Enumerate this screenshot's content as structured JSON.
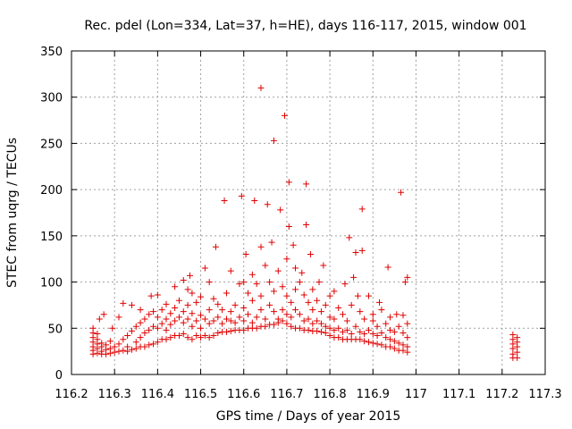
{
  "chart_data": {
    "type": "scatter",
    "title": "Rec. pdel (Lon=334, Lat=37, h=HE), days 116-117, 2015, window 001",
    "xlabel": "GPS time / Days of year 2015",
    "ylabel": "STEC from uqrg / TECUs",
    "xlim": [
      116.2,
      117.3
    ],
    "ylim": [
      0,
      350
    ],
    "xticks": [
      "116.2",
      "116.3",
      "116.4",
      "116.5",
      "116.6",
      "116.7",
      "116.8",
      "116.9",
      "117",
      "117.1",
      "117.2",
      "117.3"
    ],
    "xtick_values": [
      116.2,
      116.3,
      116.4,
      116.5,
      116.6,
      116.7,
      116.8,
      116.9,
      117.0,
      117.1,
      117.2,
      117.3
    ],
    "yticks": [
      "0",
      "50",
      "100",
      "150",
      "200",
      "250",
      "300",
      "350"
    ],
    "ytick_values": [
      0,
      50,
      100,
      150,
      200,
      250,
      300,
      350
    ],
    "grid": true,
    "marker": "+",
    "color": "#e00000",
    "series": [
      {
        "points": [
          [
            116.25,
            22
          ],
          [
            116.25,
            26
          ],
          [
            116.25,
            30
          ],
          [
            116.25,
            35
          ],
          [
            116.25,
            40
          ],
          [
            116.25,
            45
          ],
          [
            116.25,
            50
          ],
          [
            116.26,
            23
          ],
          [
            116.26,
            28
          ],
          [
            116.26,
            33
          ],
          [
            116.26,
            38
          ],
          [
            116.26,
            44
          ],
          [
            116.265,
            60
          ],
          [
            116.27,
            22
          ],
          [
            116.27,
            25
          ],
          [
            116.27,
            30
          ],
          [
            116.27,
            34
          ],
          [
            116.275,
            65
          ],
          [
            116.28,
            22
          ],
          [
            116.28,
            27
          ],
          [
            116.28,
            32
          ],
          [
            116.29,
            23
          ],
          [
            116.29,
            28
          ],
          [
            116.29,
            36
          ],
          [
            116.295,
            50
          ],
          [
            116.3,
            24
          ],
          [
            116.3,
            30
          ],
          [
            116.31,
            25
          ],
          [
            116.31,
            33
          ],
          [
            116.31,
            62
          ],
          [
            116.32,
            26
          ],
          [
            116.32,
            38
          ],
          [
            116.32,
            77
          ],
          [
            116.33,
            25
          ],
          [
            116.33,
            30
          ],
          [
            116.33,
            42
          ],
          [
            116.34,
            27
          ],
          [
            116.34,
            47
          ],
          [
            116.34,
            75
          ],
          [
            116.35,
            28
          ],
          [
            116.35,
            35
          ],
          [
            116.35,
            52
          ],
          [
            116.36,
            30
          ],
          [
            116.36,
            40
          ],
          [
            116.36,
            56
          ],
          [
            116.36,
            70
          ],
          [
            116.37,
            30
          ],
          [
            116.37,
            45
          ],
          [
            116.37,
            60
          ],
          [
            116.38,
            32
          ],
          [
            116.38,
            48
          ],
          [
            116.38,
            65
          ],
          [
            116.385,
            85
          ],
          [
            116.39,
            33
          ],
          [
            116.39,
            52
          ],
          [
            116.39,
            68
          ],
          [
            116.4,
            35
          ],
          [
            116.4,
            50
          ],
          [
            116.4,
            62
          ],
          [
            116.4,
            86
          ],
          [
            116.41,
            38
          ],
          [
            116.41,
            55
          ],
          [
            116.41,
            70
          ],
          [
            116.42,
            38
          ],
          [
            116.42,
            48
          ],
          [
            116.42,
            60
          ],
          [
            116.42,
            76
          ],
          [
            116.43,
            40
          ],
          [
            116.43,
            54
          ],
          [
            116.43,
            66
          ],
          [
            116.44,
            42
          ],
          [
            116.44,
            58
          ],
          [
            116.44,
            72
          ],
          [
            116.44,
            95
          ],
          [
            116.45,
            42
          ],
          [
            116.45,
            62
          ],
          [
            116.45,
            80
          ],
          [
            116.46,
            44
          ],
          [
            116.46,
            56
          ],
          [
            116.46,
            68
          ],
          [
            116.46,
            102
          ],
          [
            116.47,
            40
          ],
          [
            116.47,
            60
          ],
          [
            116.47,
            75
          ],
          [
            116.47,
            92
          ],
          [
            116.475,
            107
          ],
          [
            116.48,
            38
          ],
          [
            116.48,
            52
          ],
          [
            116.48,
            66
          ],
          [
            116.48,
            88
          ],
          [
            116.49,
            42
          ],
          [
            116.49,
            58
          ],
          [
            116.49,
            78
          ],
          [
            116.5,
            40
          ],
          [
            116.5,
            50
          ],
          [
            116.5,
            64
          ],
          [
            116.5,
            84
          ],
          [
            116.51,
            42
          ],
          [
            116.51,
            60
          ],
          [
            116.51,
            115
          ],
          [
            116.52,
            40
          ],
          [
            116.52,
            55
          ],
          [
            116.52,
            70
          ],
          [
            116.52,
            100
          ],
          [
            116.53,
            42
          ],
          [
            116.53,
            58
          ],
          [
            116.53,
            82
          ],
          [
            116.535,
            138
          ],
          [
            116.54,
            45
          ],
          [
            116.54,
            62
          ],
          [
            116.54,
            76
          ],
          [
            116.55,
            46
          ],
          [
            116.55,
            55
          ],
          [
            116.55,
            70
          ],
          [
            116.555,
            188
          ],
          [
            116.56,
            46
          ],
          [
            116.56,
            60
          ],
          [
            116.56,
            88
          ],
          [
            116.57,
            47
          ],
          [
            116.57,
            58
          ],
          [
            116.57,
            68
          ],
          [
            116.57,
            112
          ],
          [
            116.58,
            48
          ],
          [
            116.58,
            56
          ],
          [
            116.58,
            75
          ],
          [
            116.59,
            48
          ],
          [
            116.59,
            62
          ],
          [
            116.59,
            98
          ],
          [
            116.595,
            193
          ],
          [
            116.6,
            48
          ],
          [
            116.6,
            58
          ],
          [
            116.6,
            72
          ],
          [
            116.6,
            100
          ],
          [
            116.605,
            130
          ],
          [
            116.61,
            50
          ],
          [
            116.61,
            65
          ],
          [
            116.61,
            88
          ],
          [
            116.62,
            50
          ],
          [
            116.62,
            56
          ],
          [
            116.62,
            80
          ],
          [
            116.62,
            108
          ],
          [
            116.625,
            188
          ],
          [
            116.63,
            50
          ],
          [
            116.63,
            62
          ],
          [
            116.63,
            98
          ],
          [
            116.64,
            52
          ],
          [
            116.64,
            70
          ],
          [
            116.64,
            85
          ],
          [
            116.64,
            138
          ],
          [
            116.64,
            310
          ],
          [
            116.65,
            52
          ],
          [
            116.65,
            60
          ],
          [
            116.65,
            118
          ],
          [
            116.655,
            184
          ],
          [
            116.66,
            54
          ],
          [
            116.66,
            75
          ],
          [
            116.66,
            100
          ],
          [
            116.665,
            143
          ],
          [
            116.67,
            54
          ],
          [
            116.67,
            68
          ],
          [
            116.67,
            90
          ],
          [
            116.67,
            253
          ],
          [
            116.68,
            56
          ],
          [
            116.68,
            60
          ],
          [
            116.68,
            112
          ],
          [
            116.685,
            178
          ],
          [
            116.69,
            58
          ],
          [
            116.69,
            70
          ],
          [
            116.69,
            95
          ],
          [
            116.695,
            280
          ],
          [
            116.7,
            55
          ],
          [
            116.7,
            65
          ],
          [
            116.7,
            85
          ],
          [
            116.7,
            125
          ],
          [
            116.705,
            160
          ],
          [
            116.705,
            208
          ],
          [
            116.71,
            52
          ],
          [
            116.71,
            62
          ],
          [
            116.71,
            78
          ],
          [
            116.715,
            140
          ],
          [
            116.72,
            50
          ],
          [
            116.72,
            70
          ],
          [
            116.72,
            92
          ],
          [
            116.72,
            115
          ],
          [
            116.73,
            50
          ],
          [
            116.73,
            65
          ],
          [
            116.73,
            100
          ],
          [
            116.735,
            110
          ],
          [
            116.74,
            48
          ],
          [
            116.74,
            58
          ],
          [
            116.74,
            86
          ],
          [
            116.745,
            162
          ],
          [
            116.745,
            206
          ],
          [
            116.75,
            48
          ],
          [
            116.75,
            60
          ],
          [
            116.75,
            78
          ],
          [
            116.755,
            130
          ],
          [
            116.76,
            47
          ],
          [
            116.76,
            55
          ],
          [
            116.76,
            70
          ],
          [
            116.76,
            92
          ],
          [
            116.77,
            47
          ],
          [
            116.77,
            58
          ],
          [
            116.77,
            80
          ],
          [
            116.775,
            100
          ],
          [
            116.78,
            46
          ],
          [
            116.78,
            55
          ],
          [
            116.78,
            68
          ],
          [
            116.785,
            118
          ],
          [
            116.79,
            45
          ],
          [
            116.79,
            52
          ],
          [
            116.79,
            75
          ],
          [
            116.8,
            42
          ],
          [
            116.8,
            50
          ],
          [
            116.8,
            62
          ],
          [
            116.8,
            85
          ],
          [
            116.81,
            40
          ],
          [
            116.81,
            48
          ],
          [
            116.81,
            60
          ],
          [
            116.81,
            90
          ],
          [
            116.82,
            40
          ],
          [
            116.82,
            50
          ],
          [
            116.82,
            72
          ],
          [
            116.83,
            38
          ],
          [
            116.83,
            46
          ],
          [
            116.83,
            65
          ],
          [
            116.835,
            98
          ],
          [
            116.84,
            38
          ],
          [
            116.84,
            48
          ],
          [
            116.84,
            58
          ],
          [
            116.845,
            148
          ],
          [
            116.85,
            38
          ],
          [
            116.85,
            44
          ],
          [
            116.85,
            75
          ],
          [
            116.855,
            105
          ],
          [
            116.86,
            38
          ],
          [
            116.86,
            52
          ],
          [
            116.86,
            132
          ],
          [
            116.865,
            85
          ],
          [
            116.87,
            38
          ],
          [
            116.87,
            46
          ],
          [
            116.87,
            68
          ],
          [
            116.875,
            134
          ],
          [
            116.875,
            179
          ],
          [
            116.88,
            36
          ],
          [
            116.88,
            44
          ],
          [
            116.88,
            60
          ],
          [
            116.89,
            35
          ],
          [
            116.89,
            48
          ],
          [
            116.89,
            85
          ],
          [
            116.9,
            34
          ],
          [
            116.9,
            44
          ],
          [
            116.9,
            58
          ],
          [
            116.9,
            65
          ],
          [
            116.91,
            33
          ],
          [
            116.91,
            42
          ],
          [
            116.91,
            52
          ],
          [
            116.915,
            78
          ],
          [
            116.92,
            32
          ],
          [
            116.92,
            45
          ],
          [
            116.92,
            70
          ],
          [
            116.93,
            30
          ],
          [
            116.93,
            40
          ],
          [
            116.93,
            55
          ],
          [
            116.935,
            116
          ],
          [
            116.94,
            30
          ],
          [
            116.94,
            38
          ],
          [
            116.94,
            48
          ],
          [
            116.94,
            62
          ],
          [
            116.95,
            28
          ],
          [
            116.95,
            36
          ],
          [
            116.95,
            46
          ],
          [
            116.955,
            65
          ],
          [
            116.96,
            26
          ],
          [
            116.96,
            34
          ],
          [
            116.96,
            52
          ],
          [
            116.965,
            197
          ],
          [
            116.97,
            26
          ],
          [
            116.97,
            32
          ],
          [
            116.97,
            45
          ],
          [
            116.97,
            64
          ],
          [
            116.975,
            100
          ],
          [
            116.98,
            24
          ],
          [
            116.98,
            30
          ],
          [
            116.98,
            40
          ],
          [
            116.98,
            55
          ],
          [
            116.98,
            105
          ],
          [
            117.225,
            18
          ],
          [
            117.225,
            22
          ],
          [
            117.225,
            28
          ],
          [
            117.225,
            33
          ],
          [
            117.225,
            38
          ],
          [
            117.225,
            43
          ],
          [
            117.235,
            18
          ],
          [
            117.235,
            24
          ],
          [
            117.235,
            30
          ],
          [
            117.235,
            35
          ],
          [
            117.235,
            40
          ]
        ]
      }
    ]
  }
}
